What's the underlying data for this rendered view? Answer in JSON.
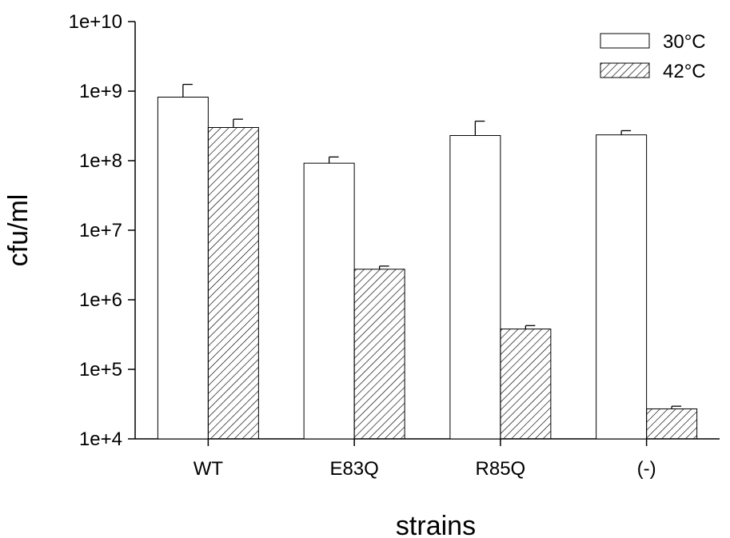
{
  "chart_data": {
    "type": "bar",
    "y_scale": "log",
    "xlabel": "strains",
    "ylabel": "cfu/ml",
    "ylim": [
      10000,
      10000000000
    ],
    "y_tick_values": [
      10000,
      100000,
      1000000,
      10000000,
      100000000,
      1000000000,
      10000000000
    ],
    "y_tick_labels": [
      "1e+4",
      "1e+5",
      "1e+6",
      "1e+7",
      "1e+8",
      "1e+9",
      "1e+10"
    ],
    "categories": [
      "WT",
      "E83Q",
      "R85Q",
      "(-)"
    ],
    "series": [
      {
        "name": "30°C",
        "fill": "#ffffff",
        "pattern": "none",
        "values": [
          820000000,
          92000000,
          230000000,
          235000000
        ],
        "error_upper": [
          1250000000,
          113000000,
          370000000,
          270000000
        ]
      },
      {
        "name": "42°C",
        "fill": "#ffffff",
        "pattern": "diagonal-hatch",
        "values": [
          300000000,
          2750000,
          380000,
          27000
        ],
        "error_upper": [
          395000000,
          3050000,
          425000,
          29500
        ]
      }
    ],
    "legend_position": "top-right",
    "grid": false,
    "colors": {
      "axis": "#000000",
      "bar_stroke": "#000000",
      "hatch": "#000000"
    }
  }
}
